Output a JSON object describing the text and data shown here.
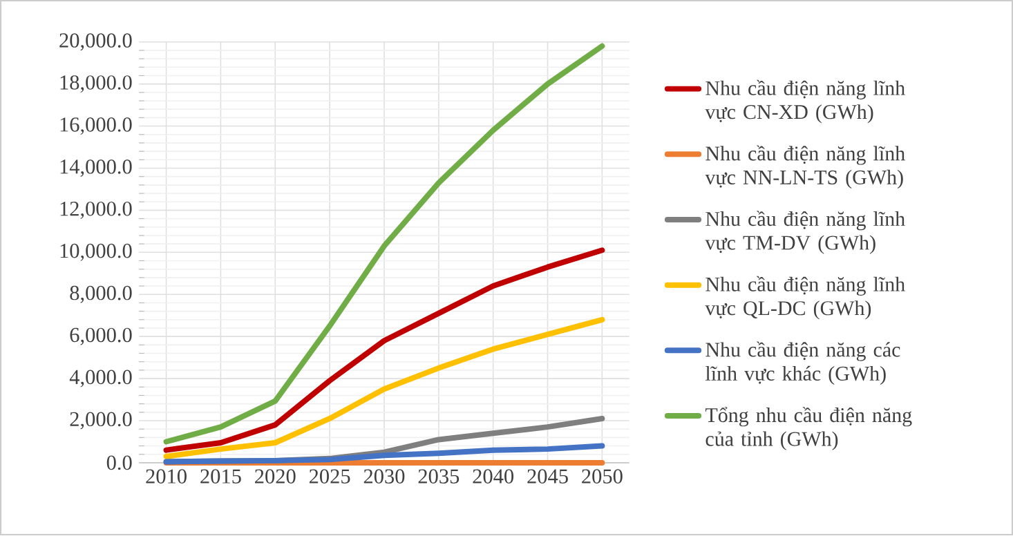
{
  "chart_data": {
    "type": "line",
    "categories": [
      "2010",
      "2015",
      "2020",
      "2025",
      "2030",
      "2035",
      "2040",
      "2045",
      "2050"
    ],
    "series": [
      {
        "name": "Nhu cầu điện năng lĩnh vực CN-XD (GWh)",
        "color": "#c00000",
        "values": [
          600,
          950,
          1800,
          3900,
          5800,
          7100,
          8400,
          9300,
          10100
        ]
      },
      {
        "name": "Nhu cầu điện năng lĩnh vực NN-LN-TS (GWh)",
        "color": "#ed7d31",
        "values": [
          0,
          0,
          0,
          0,
          0,
          0,
          0,
          0,
          0
        ]
      },
      {
        "name": "Nhu cầu điện năng lĩnh vực TM-DV (GWh)",
        "color": "#7f7f7f",
        "values": [
          50,
          80,
          100,
          200,
          500,
          1100,
          1400,
          1700,
          2100
        ]
      },
      {
        "name": "Nhu cầu điện năng lĩnh vực QL-DC (GWh)",
        "color": "#ffc000",
        "values": [
          300,
          650,
          950,
          2100,
          3500,
          4500,
          5400,
          6100,
          6800
        ]
      },
      {
        "name": "Nhu cầu điện năng các lĩnh vực khác (GWh)",
        "color": "#4472c4",
        "values": [
          50,
          80,
          100,
          150,
          350,
          450,
          600,
          650,
          800
        ]
      },
      {
        "name": "Tổng nhu cầu điện năng của tỉnh (GWh)",
        "color": "#70ad47",
        "values": [
          1000,
          1700,
          2930,
          6500,
          10300,
          13300,
          15800,
          18000,
          19800
        ]
      }
    ],
    "ylim": [
      0,
      20000
    ],
    "yticks": [
      {
        "value": 0,
        "label": "0.0"
      },
      {
        "value": 2000,
        "label": "2,000.0"
      },
      {
        "value": 4000,
        "label": "4,000.0"
      },
      {
        "value": 6000,
        "label": "6,000.0"
      },
      {
        "value": 8000,
        "label": "8,000.0"
      },
      {
        "value": 10000,
        "label": "10,000.0"
      },
      {
        "value": 12000,
        "label": "12,000.0"
      },
      {
        "value": 14000,
        "label": "14,000.0"
      },
      {
        "value": 16000,
        "label": "16,000.0"
      },
      {
        "value": 18000,
        "label": "18,000.0"
      },
      {
        "value": 20000,
        "label": "20,000.0"
      }
    ],
    "grid": true,
    "legend": "right",
    "marker": "none",
    "line_style": "solid"
  }
}
